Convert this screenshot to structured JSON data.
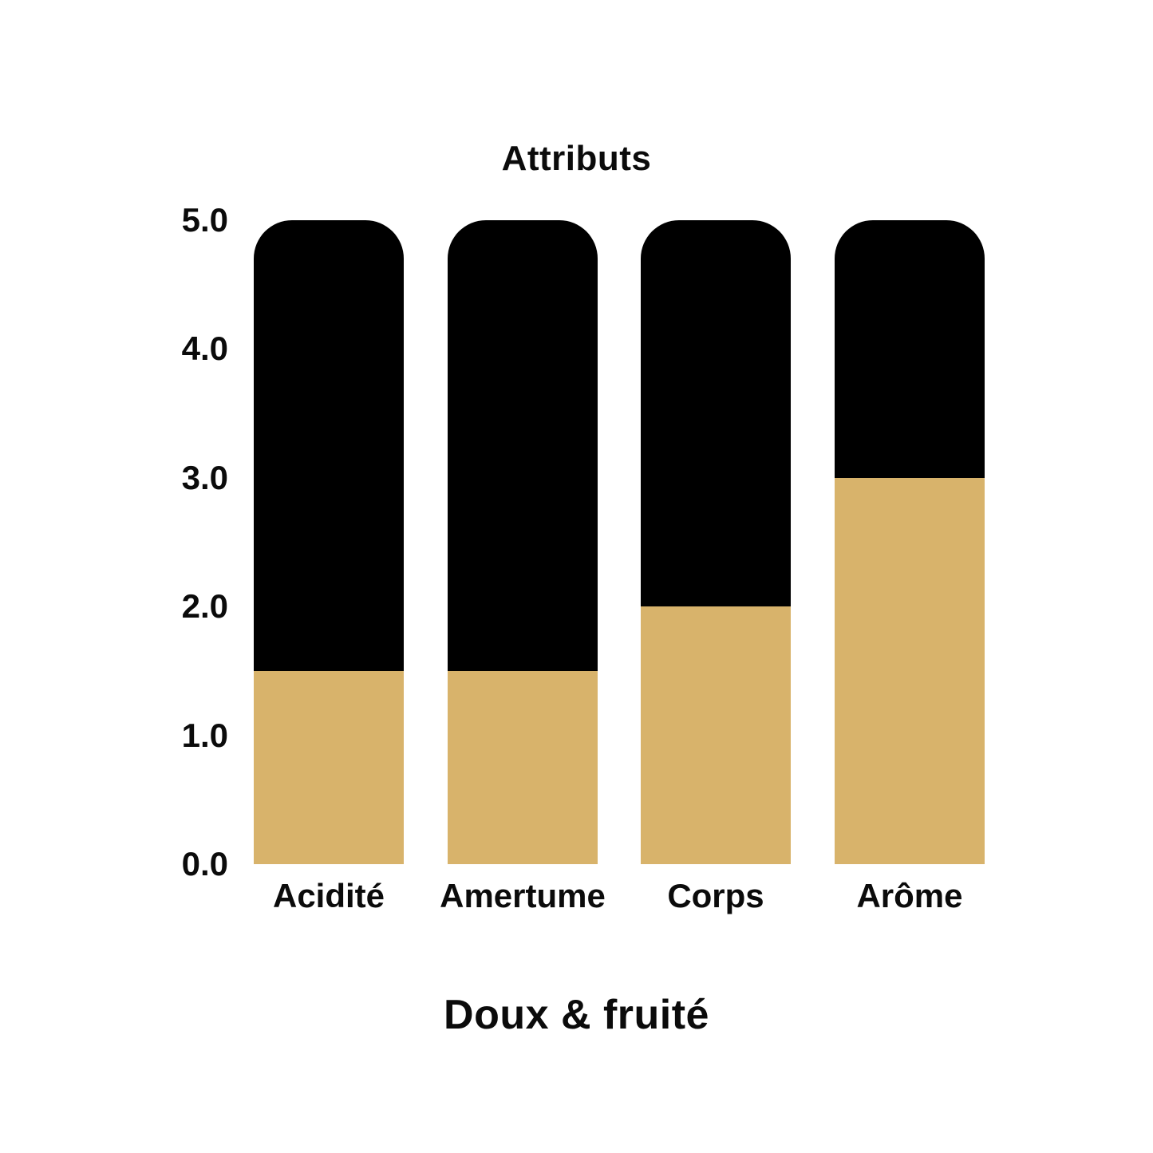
{
  "page": {
    "background_color": "#ffffff"
  },
  "chart_data": {
    "type": "bar",
    "title": "Attributs",
    "subtitle": "Doux & fruité",
    "categories": [
      "Acidité",
      "Amertume",
      "Corps",
      "Arôme"
    ],
    "values": [
      1.5,
      1.5,
      2.0,
      3.0
    ],
    "track_max": 5,
    "ylim": [
      0,
      5
    ],
    "ytick_labels": [
      "0.0",
      "1.0",
      "2.0",
      "3.0",
      "4.0",
      "5.0"
    ],
    "grid": false,
    "legend_position": "none",
    "fill_color": "#d8b36b",
    "track_color": "#000000",
    "text_color": "#0b0b0b"
  }
}
